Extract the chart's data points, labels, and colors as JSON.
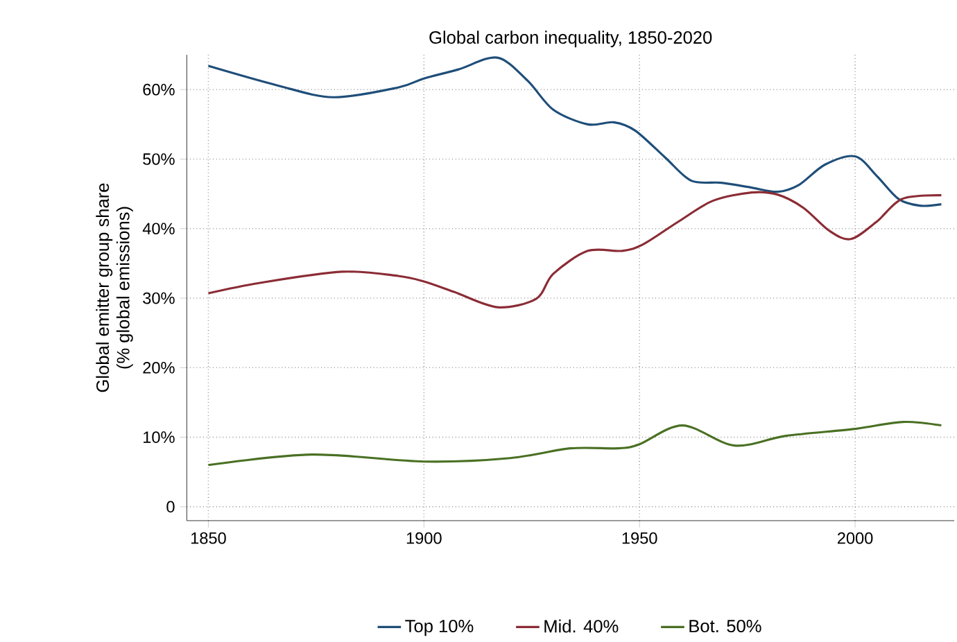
{
  "chart_data": {
    "type": "line",
    "title": "Global carbon inequality, 1850-2020",
    "ylabel": "Global emitter group share\n(% global emissions)",
    "xlim": [
      1845,
      2023
    ],
    "ylim": [
      -2,
      65
    ],
    "xticks": [
      1850,
      1900,
      1950,
      2000
    ],
    "yticks": [
      0,
      {
        "value": 10,
        "label": "10%"
      },
      {
        "value": 20,
        "label": "20%"
      },
      {
        "value": 30,
        "label": "30%"
      },
      {
        "value": 40,
        "label": "40%"
      },
      {
        "value": 50,
        "label": "50%"
      },
      {
        "value": 60,
        "label": "60%"
      }
    ],
    "grid": true,
    "legend": "bottom",
    "line_style": "solid",
    "marker": "none",
    "series": [
      {
        "name": "Top 10%",
        "color": "#1f4e79",
        "x": [
          1850,
          1866,
          1879,
          1894,
          1900,
          1908,
          1917,
          1924,
          1930,
          1938,
          1944,
          1949,
          1956,
          1962,
          1969,
          1976,
          1982,
          1987,
          1993,
          2000,
          2005,
          2010,
          2015,
          2020
        ],
        "values": [
          63.4,
          60.6,
          58.9,
          60.3,
          61.6,
          62.9,
          64.6,
          61.3,
          57.1,
          55.0,
          55.3,
          54.1,
          50.2,
          46.9,
          46.6,
          45.9,
          45.3,
          46.3,
          49.2,
          50.4,
          47.6,
          44.3,
          43.3,
          43.5
        ]
      },
      {
        "name": "Mid. 40%",
        "color": "#8b2c35",
        "x": [
          1850,
          1862,
          1881,
          1894,
          1900,
          1907,
          1917,
          1926,
          1930,
          1938,
          1946,
          1951,
          1959,
          1967,
          1976,
          1982,
          1988,
          1994,
          1999,
          2005,
          2011,
          2020
        ],
        "values": [
          30.7,
          32.2,
          33.8,
          33.2,
          32.4,
          30.9,
          28.7,
          29.9,
          33.5,
          36.8,
          36.8,
          37.8,
          41.0,
          44.0,
          45.2,
          44.9,
          43.0,
          39.7,
          38.5,
          41.0,
          44.3,
          44.8
        ]
      },
      {
        "name": "Bot. 50%",
        "color": "#4a7023",
        "x": [
          1850,
          1874,
          1900,
          1920,
          1934,
          1945,
          1950,
          1960,
          1972,
          1984,
          2000,
          2011,
          2020
        ],
        "values": [
          6.0,
          7.5,
          6.5,
          7.0,
          8.4,
          8.4,
          9.0,
          11.7,
          8.8,
          10.2,
          11.2,
          12.2,
          11.7
        ]
      }
    ]
  }
}
